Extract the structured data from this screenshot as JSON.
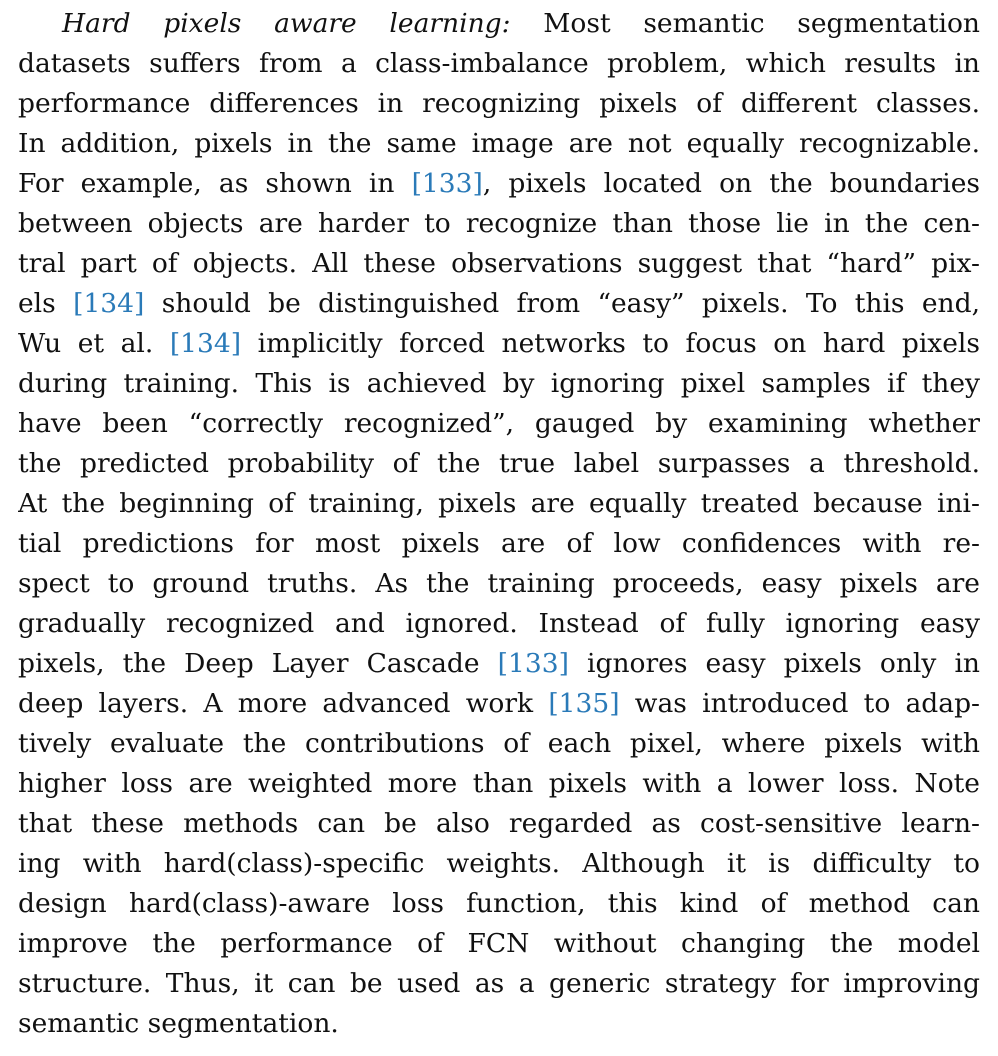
{
  "paragraph": {
    "colors": {
      "text": "#111111",
      "reference_link": "#2a7ab8"
    },
    "lines": [
      {
        "segments": [
          {
            "t": "Hard pixels aware learning:",
            "style": "italic"
          },
          {
            "t": " Most semantic segmentation"
          }
        ]
      },
      {
        "segments": [
          {
            "t": "datasets suffers from a class-imbalance problem, which results in"
          }
        ]
      },
      {
        "segments": [
          {
            "t": "performance differences in recognizing pixels of different classes."
          }
        ]
      },
      {
        "segments": [
          {
            "t": "In addition, pixels in the same image are not equally recognizable."
          }
        ]
      },
      {
        "segments": [
          {
            "t": "For example, as shown in "
          },
          {
            "t": "[133]",
            "style": "ref"
          },
          {
            "t": ", pixels located on the boundaries"
          }
        ]
      },
      {
        "segments": [
          {
            "t": "between objects are harder to recognize than those lie in the cen-"
          }
        ]
      },
      {
        "segments": [
          {
            "t": "tral part of objects. All these observations suggest that “hard” pix-"
          }
        ]
      },
      {
        "segments": [
          {
            "t": "els "
          },
          {
            "t": "[134]",
            "style": "ref"
          },
          {
            "t": " should be distinguished from “easy” pixels. To this end,"
          }
        ]
      },
      {
        "segments": [
          {
            "t": "Wu et al. "
          },
          {
            "t": "[134]",
            "style": "ref"
          },
          {
            "t": " implicitly forced networks to focus on hard pixels"
          }
        ]
      },
      {
        "segments": [
          {
            "t": "during training. This is achieved by ignoring pixel samples if they"
          }
        ]
      },
      {
        "segments": [
          {
            "t": "have been “correctly recognized”, gauged by examining whether"
          }
        ]
      },
      {
        "segments": [
          {
            "t": "the predicted probability of the true label surpasses a threshold."
          }
        ]
      },
      {
        "segments": [
          {
            "t": "At the beginning of training, pixels are equally treated because ini-"
          }
        ]
      },
      {
        "segments": [
          {
            "t": "tial predictions for most pixels are of low confidences with re-"
          }
        ]
      },
      {
        "segments": [
          {
            "t": "spect to ground truths. As the training proceeds, easy pixels are"
          }
        ]
      },
      {
        "segments": [
          {
            "t": "gradually recognized and ignored. Instead of fully ignoring easy"
          }
        ]
      },
      {
        "segments": [
          {
            "t": "pixels, the Deep Layer Cascade "
          },
          {
            "t": "[133]",
            "style": "ref"
          },
          {
            "t": " ignores easy pixels only in"
          }
        ]
      },
      {
        "segments": [
          {
            "t": "deep layers. A more advanced work "
          },
          {
            "t": "[135]",
            "style": "ref"
          },
          {
            "t": " was introduced to adap-"
          }
        ]
      },
      {
        "segments": [
          {
            "t": "tively evaluate the contributions of each pixel, where pixels with"
          }
        ]
      },
      {
        "segments": [
          {
            "t": "higher loss are weighted more than pixels with a lower loss. Note"
          }
        ]
      },
      {
        "segments": [
          {
            "t": "that these methods can be also regarded as cost-sensitive learn-"
          }
        ]
      },
      {
        "segments": [
          {
            "t": "ing with hard(class)-specific weights. Although it is difficulty to"
          }
        ]
      },
      {
        "segments": [
          {
            "t": "design hard(class)-aware loss function, this kind of method can"
          }
        ]
      },
      {
        "segments": [
          {
            "t": "improve the performance of FCN without changing the model"
          }
        ]
      },
      {
        "segments": [
          {
            "t": "structure. Thus, it can be used as a generic strategy for improving"
          }
        ]
      },
      {
        "segments": [
          {
            "t": "semantic segmentation."
          }
        ]
      }
    ]
  }
}
